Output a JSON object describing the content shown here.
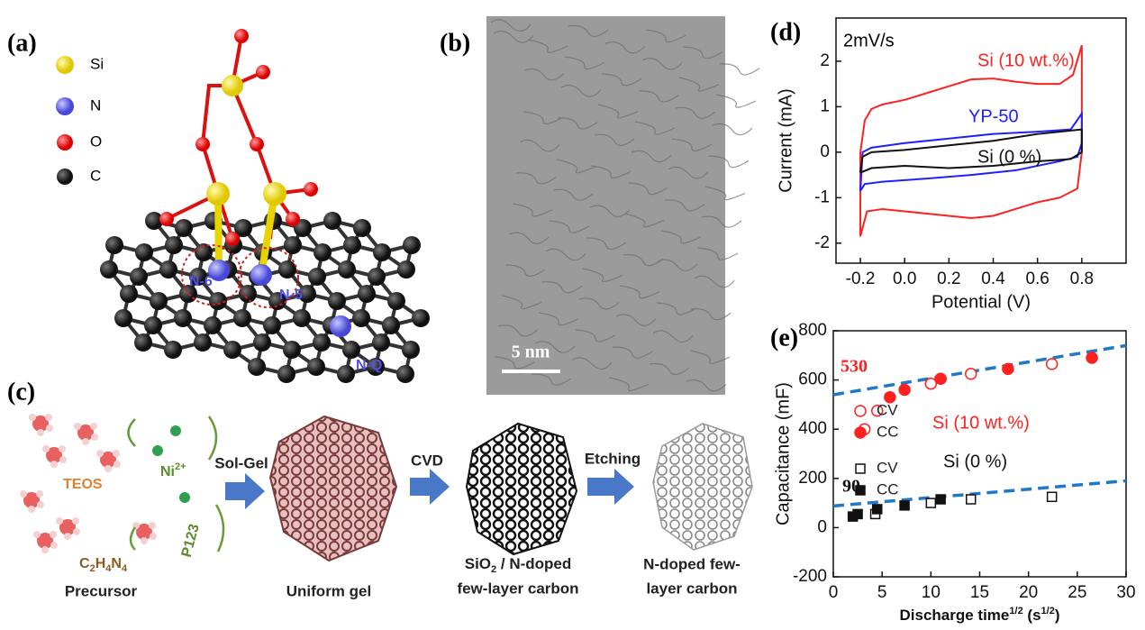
{
  "panels": {
    "a": {
      "label": "(a)",
      "legend": [
        "Si",
        "N",
        "O",
        "C"
      ],
      "sites": [
        "N-6",
        "N-5",
        "N-Q"
      ]
    },
    "b": {
      "label": "(b)",
      "scale_bar": "5 nm"
    },
    "c": {
      "label": "(c)",
      "teos": "TEOS",
      "ni": [
        "Ni",
        "2+"
      ],
      "formula": [
        "C",
        "2",
        "H",
        "4",
        "N",
        "4"
      ],
      "p123": "P123",
      "steps": [
        "Sol-Gel",
        "CVD",
        "Etching"
      ],
      "precursor": "Precursor",
      "gel": "Uniform gel",
      "sio2": [
        "SiO",
        "2",
        " / N-doped",
        "few-layer carbon"
      ],
      "final": [
        "N-doped few-",
        "layer carbon"
      ]
    }
  },
  "chart_data": [
    {
      "type": "line",
      "panel_label": "(d)",
      "annotation": "2mV/s",
      "xlabel": "Potential (V)",
      "ylabel": "Current (mA)",
      "xlim": [
        -0.31,
        1.0
      ],
      "ylim": [
        -2.44,
        2.95
      ],
      "xticks": [
        -0.2,
        {
          "value": 0,
          "label": "0.0"
        },
        0.2,
        0.4,
        0.6,
        0.8
      ],
      "yticks": [
        -2,
        -1,
        0,
        1,
        2
      ],
      "series": [
        {
          "name": "Si (10 wt.%)",
          "color": "#ff2020",
          "x": [
            -0.2,
            -0.18,
            -0.15,
            -0.1,
            0,
            0.1,
            0.2,
            0.3,
            0.4,
            0.5,
            0.6,
            0.7,
            0.76,
            0.8,
            0.8,
            0.78,
            0.7,
            0.6,
            0.5,
            0.4,
            0.3,
            0.2,
            0.1,
            0,
            -0.1,
            -0.17,
            -0.2,
            -0.2
          ],
          "values": [
            0,
            0.7,
            0.95,
            1.05,
            1.15,
            1.3,
            1.45,
            1.6,
            1.62,
            1.55,
            1.5,
            1.5,
            1.7,
            2.35,
            0,
            -0.8,
            -1.0,
            -1.1,
            -1.25,
            -1.4,
            -1.45,
            -1.4,
            -1.35,
            -1.3,
            -1.25,
            -1.3,
            -1.85,
            0
          ]
        },
        {
          "name": "YP-50",
          "color": "#2020ff",
          "x": [
            -0.2,
            -0.19,
            -0.15,
            0,
            0.2,
            0.4,
            0.6,
            0.75,
            0.8,
            0.8,
            0.78,
            0.7,
            0.5,
            0.3,
            0.1,
            -0.1,
            -0.18,
            -0.2
          ],
          "values": [
            -0.85,
            0,
            0.1,
            0.2,
            0.3,
            0.4,
            0.45,
            0.5,
            0.85,
            0.2,
            -0.1,
            -0.2,
            -0.4,
            -0.5,
            -0.58,
            -0.65,
            -0.7,
            -0.85
          ]
        },
        {
          "name": "Si (0 %)",
          "color": "#111111",
          "x": [
            -0.2,
            -0.19,
            -0.15,
            0,
            0.2,
            0.4,
            0.6,
            0.8,
            0.8,
            0.75,
            0.6,
            0.4,
            0.2,
            0,
            -0.15,
            -0.2
          ],
          "values": [
            -0.45,
            -0.1,
            0,
            0.05,
            0.15,
            0.25,
            0.4,
            0.5,
            0,
            -0.15,
            -0.2,
            -0.3,
            -0.35,
            -0.3,
            -0.35,
            -0.45
          ]
        }
      ]
    },
    {
      "type": "scatter",
      "panel_label": "(e)",
      "xlabel": [
        "Discharge time",
        "1/2",
        " (s",
        "1/2",
        ")"
      ],
      "ylabel": "Capacitance (mF)",
      "xlim": [
        0,
        30
      ],
      "ylim": [
        -200,
        800
      ],
      "xticks": [
        0,
        5,
        10,
        15,
        20,
        25,
        30
      ],
      "yticks": [
        -200,
        0,
        200,
        400,
        600,
        800
      ],
      "series": [
        {
          "name": "CV",
          "color": "#ff2020",
          "marker": "circle",
          "filled": false,
          "x": [
            3.2,
            4.5,
            10,
            14.1,
            22.4
          ],
          "values": [
            400,
            475,
            585,
            625,
            665
          ]
        },
        {
          "name": "CC",
          "color": "#ff2020",
          "marker": "circle",
          "filled": true,
          "x": [
            5.8,
            7.3,
            11,
            17.9,
            26.5
          ],
          "values": [
            530,
            560,
            605,
            645,
            690
          ]
        },
        {
          "name": "CV",
          "color": "#111111",
          "marker": "square",
          "filled": false,
          "x": [
            4.3,
            10,
            14.1,
            22.4
          ],
          "values": [
            55,
            100,
            115,
            125
          ]
        },
        {
          "name": "CC",
          "color": "#111111",
          "marker": "square",
          "filled": true,
          "x": [
            2,
            2.5,
            4.5,
            7.3,
            11
          ],
          "values": [
            45,
            55,
            75,
            90,
            115
          ]
        }
      ],
      "fits": [
        {
          "color": "#1f78c8",
          "x": [
            0,
            30
          ],
          "values": [
            540,
            740
          ]
        },
        {
          "color": "#1f78c8",
          "x": [
            0,
            30
          ],
          "values": [
            88,
            190
          ]
        }
      ],
      "groups": [
        {
          "text": "Si (10 wt.%)",
          "color": "#ff2020"
        },
        {
          "text": "Si (0 %)",
          "color": "#111111"
        }
      ],
      "annotations": [
        {
          "text": "530",
          "color": "#ff2020"
        },
        {
          "text": "90",
          "color": "#111111"
        }
      ]
    }
  ]
}
